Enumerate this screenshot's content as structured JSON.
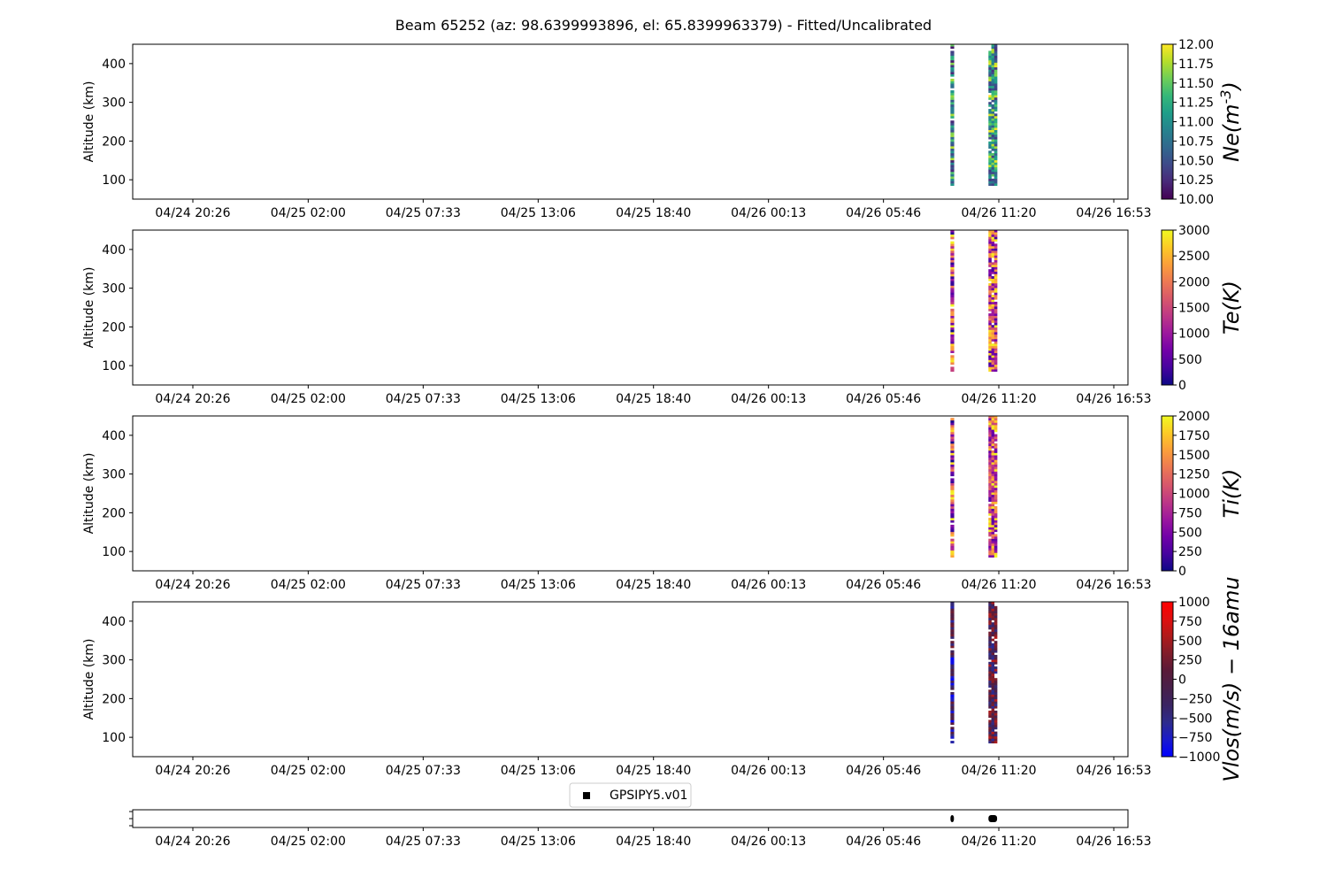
{
  "figure": {
    "title": "Beam 65252 (az: 98.6399993896, el: 65.8399963379) - Fitted/Uncalibrated"
  },
  "time_ticks": [
    "04/24 20:26",
    "04/25 02:00",
    "04/25 07:33",
    "04/25 13:06",
    "04/25 18:40",
    "04/26 00:13",
    "04/26 05:46",
    "04/26 11:20",
    "04/26 16:53"
  ],
  "legend": {
    "label": "GPSIPY5.v01"
  },
  "chart_data": [
    {
      "type": "heatmap",
      "parameter": "Ne",
      "colorbar_label": "Ne(m^{-3})",
      "colormap": "viridis",
      "clim": [
        10.0,
        12.0
      ],
      "colorbar_ticks": [
        "10.00",
        "10.25",
        "10.50",
        "10.75",
        "11.00",
        "11.25",
        "11.50",
        "11.75",
        "12.00"
      ],
      "ylabel": "Altitude (km)",
      "ylim": [
        50,
        450
      ],
      "yticks": [
        100,
        200,
        300,
        400
      ],
      "blocks": [
        {
          "t_start": "04/26 09:00",
          "t_end": "04/26 09:10",
          "alt_min": 85,
          "alt_max": 450,
          "value_range": [
            10.1,
            11.8
          ]
        },
        {
          "t_start": "04/26 10:50",
          "t_end": "04/26 11:15",
          "alt_min": 85,
          "alt_max": 450,
          "value_range": [
            10.3,
            12.0
          ]
        }
      ]
    },
    {
      "type": "heatmap",
      "parameter": "Te",
      "colorbar_label": "Te(K)",
      "colormap": "plasma",
      "clim": [
        0,
        3000
      ],
      "colorbar_ticks": [
        "0",
        "500",
        "1000",
        "1500",
        "2000",
        "2500",
        "3000"
      ],
      "ylabel": "Altitude (km)",
      "ylim": [
        50,
        450
      ],
      "yticks": [
        100,
        200,
        300,
        400
      ],
      "blocks": [
        {
          "t_start": "04/26 09:00",
          "t_end": "04/26 09:10",
          "alt_min": 85,
          "alt_max": 450,
          "value_range": [
            0,
            3000
          ]
        },
        {
          "t_start": "04/26 10:50",
          "t_end": "04/26 11:15",
          "alt_min": 85,
          "alt_max": 450,
          "value_range": [
            300,
            3000
          ]
        }
      ]
    },
    {
      "type": "heatmap",
      "parameter": "Ti",
      "colorbar_label": "Ti(K)",
      "colormap": "plasma",
      "clim": [
        0,
        2000
      ],
      "colorbar_ticks": [
        "0",
        "250",
        "500",
        "750",
        "1000",
        "1250",
        "1500",
        "1750",
        "2000"
      ],
      "ylabel": "Altitude (km)",
      "ylim": [
        50,
        450
      ],
      "yticks": [
        100,
        200,
        300,
        400
      ],
      "blocks": [
        {
          "t_start": "04/26 09:00",
          "t_end": "04/26 09:10",
          "alt_min": 85,
          "alt_max": 450,
          "value_range": [
            0,
            2000
          ]
        },
        {
          "t_start": "04/26 10:50",
          "t_end": "04/26 11:15",
          "alt_min": 85,
          "alt_max": 450,
          "value_range": [
            300,
            2000
          ]
        }
      ]
    },
    {
      "type": "heatmap",
      "parameter": "Vlos",
      "colorbar_label": "Vlos(m/s) − 16amu",
      "colormap": "bwr",
      "clim": [
        -1000,
        1000
      ],
      "colorbar_ticks": [
        "−1000",
        "−750",
        "−500",
        "−250",
        "0",
        "250",
        "500",
        "750",
        "1000"
      ],
      "ylabel": "Altitude (km)",
      "ylim": [
        50,
        450
      ],
      "yticks": [
        100,
        200,
        300,
        400
      ],
      "blocks": [
        {
          "t_start": "04/26 09:00",
          "t_end": "04/26 09:10",
          "alt_min": 85,
          "alt_max": 450,
          "value_range": [
            -1000,
            300
          ]
        },
        {
          "t_start": "04/26 10:50",
          "t_end": "04/26 11:15",
          "alt_min": 85,
          "alt_max": 450,
          "value_range": [
            -600,
            600
          ]
        }
      ]
    },
    {
      "type": "scatter",
      "series": [
        {
          "name": "GPSIPY5.v01",
          "marker": "square",
          "color": "#000000",
          "x_ranges": [
            [
              "04/26 09:00",
              "04/26 09:10"
            ],
            [
              "04/26 10:50",
              "04/26 11:15"
            ]
          ]
        }
      ]
    }
  ]
}
